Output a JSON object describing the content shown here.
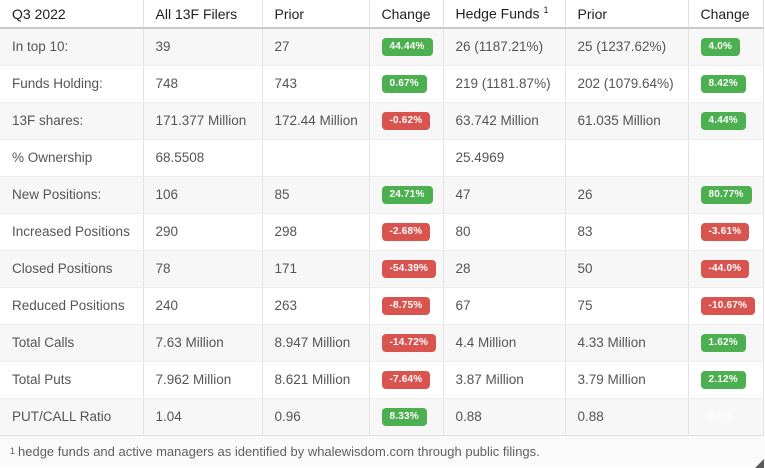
{
  "table": {
    "columns": [
      "Q3 2022",
      "All 13F Filers",
      "Prior",
      "Change",
      "Hedge Funds",
      "Prior",
      "Change"
    ],
    "hedge_funds_superscript": "1",
    "rows": [
      {
        "label": "In top 10:",
        "all_value": "39",
        "all_prior": "27",
        "all_change": "44.44%",
        "all_change_type": "up",
        "hf_value": "26 (1187.21%)",
        "hf_prior": "25 (1237.62%)",
        "hf_change": "4.0%",
        "hf_change_type": "up"
      },
      {
        "label": "Funds Holding:",
        "all_value": "748",
        "all_prior": "743",
        "all_change": "0.67%",
        "all_change_type": "up",
        "hf_value": "219 (1181.87%)",
        "hf_prior": "202 (1079.64%)",
        "hf_change": "8.42%",
        "hf_change_type": "up"
      },
      {
        "label": "13F shares:",
        "all_value": "171.377 Million",
        "all_prior": "172.44 Million",
        "all_change": "-0.62%",
        "all_change_type": "down",
        "hf_value": "63.742 Million",
        "hf_prior": "61.035 Million",
        "hf_change": "4.44%",
        "hf_change_type": "up"
      },
      {
        "label": "% Ownership",
        "all_value": "68.5508",
        "all_prior": "",
        "all_change": "",
        "all_change_type": "none",
        "hf_value": "25.4969",
        "hf_prior": "",
        "hf_change": "",
        "hf_change_type": "none"
      },
      {
        "label": "New Positions:",
        "all_value": "106",
        "all_prior": "85",
        "all_change": "24.71%",
        "all_change_type": "up",
        "hf_value": "47",
        "hf_prior": "26",
        "hf_change": "80.77%",
        "hf_change_type": "up"
      },
      {
        "label": "Increased Positions",
        "all_value": "290",
        "all_prior": "298",
        "all_change": "-2.68%",
        "all_change_type": "down",
        "hf_value": "80",
        "hf_prior": "83",
        "hf_change": "-3.61%",
        "hf_change_type": "down"
      },
      {
        "label": "Closed Positions",
        "all_value": "78",
        "all_prior": "171",
        "all_change": "-54.39%",
        "all_change_type": "down",
        "hf_value": "28",
        "hf_prior": "50",
        "hf_change": "-44.0%",
        "hf_change_type": "down"
      },
      {
        "label": "Reduced Positions",
        "all_value": "240",
        "all_prior": "263",
        "all_change": "-8.75%",
        "all_change_type": "down",
        "hf_value": "67",
        "hf_prior": "75",
        "hf_change": "-10.67%",
        "hf_change_type": "down"
      },
      {
        "label": "Total Calls",
        "all_value": "7.63 Million",
        "all_prior": "8.947 Million",
        "all_change": "-14.72%",
        "all_change_type": "down",
        "hf_value": "4.4 Million",
        "hf_prior": "4.33 Million",
        "hf_change": "1.62%",
        "hf_change_type": "up"
      },
      {
        "label": "Total Puts",
        "all_value": "7.962 Million",
        "all_prior": "8.621 Million",
        "all_change": "-7.64%",
        "all_change_type": "down",
        "hf_value": "3.87 Million",
        "hf_prior": "3.79 Million",
        "hf_change": "2.12%",
        "hf_change_type": "up"
      },
      {
        "label": "PUT/CALL Ratio",
        "all_value": "1.04",
        "all_prior": "0.96",
        "all_change": "8.33%",
        "all_change_type": "up",
        "hf_value": "0.88",
        "hf_prior": "0.88",
        "hf_change": "0.0%",
        "hf_change_type": "zero"
      }
    ]
  },
  "footnote": {
    "superscript": "1",
    "text": "hedge funds and active managers as identified by whalewisdom.com through public filings."
  },
  "colors": {
    "positive_badge": "#4caf50",
    "negative_badge": "#d9534f",
    "stripe": "#f7f7f7"
  }
}
